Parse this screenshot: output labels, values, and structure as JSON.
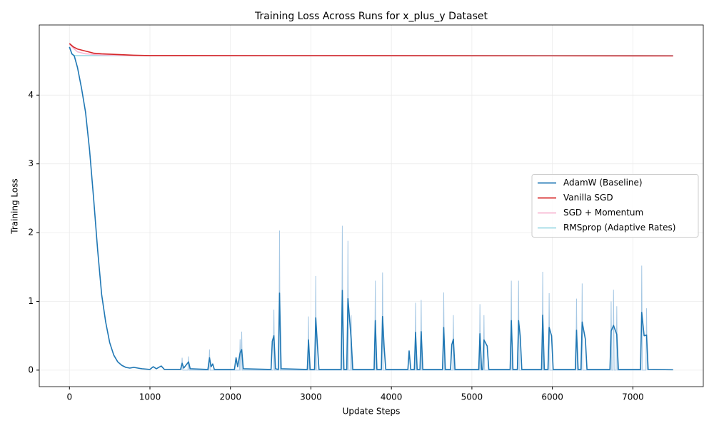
{
  "chart_data": {
    "type": "line",
    "title": "Training Loss Across Runs for x_plus_y Dataset",
    "xlabel": "Update Steps",
    "ylabel": "Training Loss",
    "xlim": [
      -375,
      7875
    ],
    "ylim": [
      -0.24,
      5.02
    ],
    "xticks": [
      0,
      1000,
      2000,
      3000,
      4000,
      5000,
      6000,
      7000
    ],
    "yticks": [
      0,
      1,
      2,
      3,
      4
    ],
    "grid": true,
    "legend": "center right",
    "series": [
      {
        "name": "AdamW (Baseline)",
        "color": "#1f77b4",
        "x": [
          0,
          30,
          60,
          100,
          150,
          200,
          250,
          300,
          350,
          400,
          450,
          500,
          550,
          600,
          650,
          700,
          750,
          800,
          850,
          900,
          1000,
          1040,
          1080,
          1140,
          1180,
          1380,
          1400,
          1420,
          1480,
          1500,
          1720,
          1740,
          1760,
          1780,
          1800,
          2050,
          2070,
          2090,
          2120,
          2140,
          2160,
          2505,
          2520,
          2540,
          2560,
          2595,
          2610,
          2630,
          2955,
          2970,
          2990,
          3045,
          3060,
          3080,
          3100,
          3375,
          3390,
          3410,
          3445,
          3460,
          3500,
          3520,
          3785,
          3800,
          3820,
          3875,
          3890,
          3910,
          3930,
          4205,
          4220,
          4240,
          4285,
          4300,
          4320,
          4355,
          4370,
          4390,
          4635,
          4650,
          4670,
          4735,
          4750,
          4770,
          4790,
          5085,
          5100,
          5120,
          5135,
          5150,
          5190,
          5210,
          5475,
          5490,
          5510,
          5565,
          5580,
          5600,
          5620,
          5865,
          5880,
          5900,
          5945,
          5960,
          5990,
          6010,
          6285,
          6300,
          6320,
          6355,
          6370,
          6410,
          6430,
          6715,
          6730,
          6760,
          6800,
          6820,
          7095,
          7110,
          7140,
          7170,
          7190,
          7500
        ],
        "values": [
          4.7,
          4.6,
          4.57,
          4.4,
          4.1,
          3.75,
          3.2,
          2.5,
          1.75,
          1.1,
          0.7,
          0.4,
          0.22,
          0.12,
          0.07,
          0.04,
          0.03,
          0.04,
          0.03,
          0.02,
          0.01,
          0.05,
          0.02,
          0.06,
          0.01,
          0.01,
          0.1,
          0.03,
          0.12,
          0.02,
          0.01,
          0.18,
          0.05,
          0.09,
          0.01,
          0.01,
          0.18,
          0.05,
          0.25,
          0.3,
          0.02,
          0.01,
          0.42,
          0.5,
          0.02,
          0.01,
          1.12,
          0.02,
          0.01,
          0.44,
          0.01,
          0.01,
          0.76,
          0.38,
          0.01,
          0.01,
          1.16,
          0.01,
          0.01,
          1.04,
          0.45,
          0.01,
          0.01,
          0.72,
          0.01,
          0.01,
          0.78,
          0.33,
          0.01,
          0.01,
          0.28,
          0.01,
          0.01,
          0.55,
          0.01,
          0.01,
          0.56,
          0.01,
          0.01,
          0.62,
          0.01,
          0.01,
          0.37,
          0.45,
          0.01,
          0.01,
          0.53,
          0.01,
          0.01,
          0.44,
          0.35,
          0.01,
          0.01,
          0.72,
          0.01,
          0.01,
          0.72,
          0.5,
          0.01,
          0.01,
          0.8,
          0.01,
          0.01,
          0.62,
          0.5,
          0.01,
          0.01,
          0.58,
          0.01,
          0.01,
          0.7,
          0.45,
          0.01,
          0.01,
          0.57,
          0.65,
          0.52,
          0.01,
          0.01,
          0.84,
          0.5,
          0.51,
          0.01,
          0.005
        ],
        "raw_color": "#a6c8e4",
        "raw_x": [
          1392,
          1400,
          1408,
          1472,
          1480,
          1488,
          1732,
          1740,
          1748,
          2112,
          2120,
          2128,
          2132,
          2140,
          2148,
          2532,
          2540,
          2548,
          2602,
          2610,
          2618,
          2962,
          2970,
          2978,
          3052,
          3060,
          3068,
          3382,
          3390,
          3398,
          3452,
          3460,
          3468,
          3492,
          3500,
          3508,
          3792,
          3800,
          3808,
          3882,
          3890,
          3898,
          4292,
          4300,
          4308,
          4362,
          4370,
          4378,
          4642,
          4650,
          4658,
          4762,
          4770,
          4778,
          5092,
          5100,
          5108,
          5142,
          5150,
          5158,
          5482,
          5490,
          5498,
          5572,
          5580,
          5588,
          5872,
          5880,
          5888,
          5952,
          5960,
          5968,
          6292,
          6300,
          6308,
          6362,
          6370,
          6378,
          6722,
          6730,
          6738,
          6752,
          6760,
          6768,
          6792,
          6800,
          6808,
          7102,
          7110,
          7118,
          7162,
          7170,
          7178
        ],
        "raw_values": [
          0,
          0.18,
          0,
          0,
          0.2,
          0,
          0,
          0.3,
          0,
          0,
          0.45,
          0,
          0,
          0.56,
          0,
          0,
          0.88,
          0,
          0,
          2.03,
          0,
          0,
          0.78,
          0,
          0,
          1.37,
          0,
          0,
          2.1,
          0,
          0,
          1.88,
          0,
          0,
          0.8,
          0,
          0,
          1.3,
          0,
          0,
          1.42,
          0,
          0,
          0.98,
          0,
          0,
          1.02,
          0,
          0,
          1.13,
          0,
          0,
          0.8,
          0,
          0,
          0.96,
          0,
          0,
          0.8,
          0,
          0,
          1.3,
          0,
          0,
          1.3,
          0,
          0,
          1.43,
          0,
          0,
          1.12,
          0,
          0,
          1.04,
          0,
          0,
          1.26,
          0,
          0,
          1.0,
          0,
          0,
          1.17,
          0,
          0,
          0.93,
          0,
          0,
          1.52,
          0,
          0,
          0.9,
          0
        ]
      },
      {
        "name": "Vanilla SGD",
        "color": "#d62728",
        "x": [
          0,
          50,
          100,
          200,
          300,
          400,
          600,
          800,
          1000,
          7500
        ],
        "values": [
          4.75,
          4.7,
          4.67,
          4.64,
          4.61,
          4.6,
          4.59,
          4.58,
          4.575,
          4.57
        ]
      },
      {
        "name": "SGD + Momentum",
        "color": "#f7b6d2",
        "x": [
          0,
          50,
          100,
          200,
          400,
          800,
          7500
        ],
        "values": [
          4.74,
          4.68,
          4.63,
          4.6,
          4.585,
          4.575,
          4.57
        ]
      },
      {
        "name": "RMSprop (Adaptive Rates)",
        "color": "#9edae5",
        "x": [
          0,
          30,
          60,
          7500
        ],
        "values": [
          4.7,
          4.6,
          4.575,
          4.575
        ]
      }
    ]
  }
}
